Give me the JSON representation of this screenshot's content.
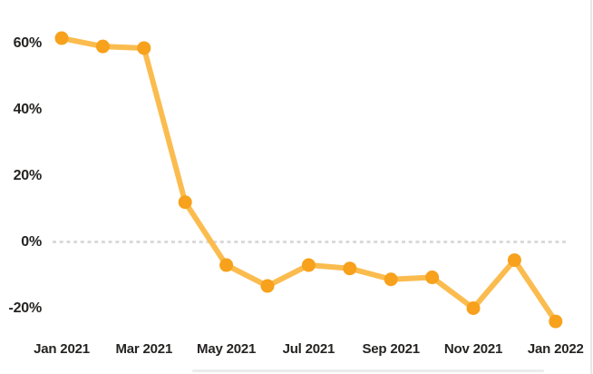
{
  "chart_data": {
    "type": "line",
    "title": "",
    "xlabel": "",
    "ylabel": "",
    "x": [
      "Jan 2021",
      "Feb 2021",
      "Mar 2021",
      "Apr 2021",
      "May 2021",
      "Jun 2021",
      "Jul 2021",
      "Aug 2021",
      "Sep 2021",
      "Oct 2021",
      "Nov 2021",
      "Dec 2021",
      "Jan 2022"
    ],
    "values": [
      61.5,
      59,
      58.5,
      12,
      -7,
      -13.3,
      -7,
      -8,
      -11.3,
      -10.7,
      -20,
      -5.5,
      -24
    ],
    "x_tick_labels": [
      "Jan 2021",
      "Mar 2021",
      "May 2021",
      "Jul 2021",
      "Sep 2021",
      "Nov 2021",
      "Jan 2022"
    ],
    "x_tick_month_indices": [
      0,
      2,
      4,
      6,
      8,
      10,
      12
    ],
    "y_ticks": [
      {
        "label": "60%",
        "value": 60
      },
      {
        "label": "40%",
        "value": 40
      },
      {
        "label": "20%",
        "value": 20
      },
      {
        "label": "0%",
        "value": 0
      },
      {
        "label": "-20%",
        "value": -20
      }
    ],
    "ylim": [
      -27,
      65
    ],
    "grid": "dashed zero line only",
    "legend": "none",
    "colors": {
      "line": "#FBBC4F",
      "marker": "#F7A11C",
      "zero_gridline": "#D8D8D8",
      "axis_text": "#252423",
      "scrollbar": "#ECECEC",
      "right_border": "#E8E8E8",
      "background": "#FFFFFF"
    }
  }
}
